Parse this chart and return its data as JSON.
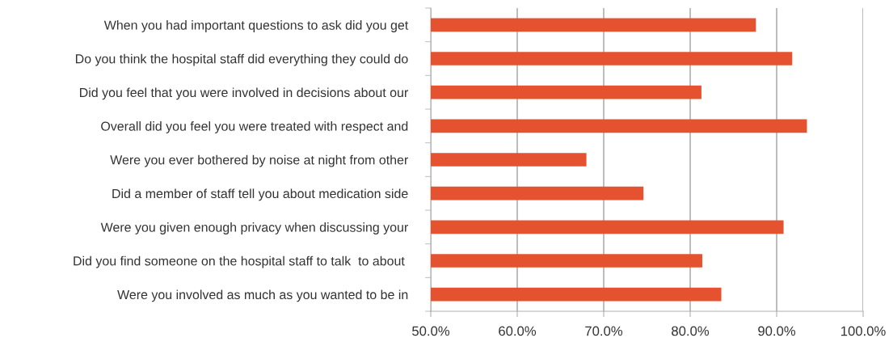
{
  "chart_data": {
    "type": "bar",
    "orientation": "horizontal",
    "categories": [
      "When you had important questions to ask did you get",
      "Do you think the hospital staff did everything they could do",
      "Did you feel that you were involved in decisions about our",
      "Overall did you feel you were treated with respect and",
      "Were you ever bothered by noise at night from other",
      "Did a member of staff tell you about medication side",
      "Were you given enough privacy when discussing your",
      "Did you find someone on the hospital staff to talk  to about ",
      "Were you involved as much as you wanted to be in"
    ],
    "values": [
      87.6,
      91.8,
      81.3,
      93.5,
      68.0,
      74.6,
      90.8,
      81.4,
      83.6
    ],
    "color": "#e55230",
    "xlim": [
      50,
      100
    ],
    "xticks": [
      {
        "value": 50,
        "label": "50.0%"
      },
      {
        "value": 60,
        "label": "60.0%"
      },
      {
        "value": 70,
        "label": "70.0%"
      },
      {
        "value": 80,
        "label": "80.0%"
      },
      {
        "value": 90,
        "label": "90.0%"
      },
      {
        "value": 100,
        "label": "100.0%"
      }
    ],
    "grid": "x",
    "legend": false
  }
}
